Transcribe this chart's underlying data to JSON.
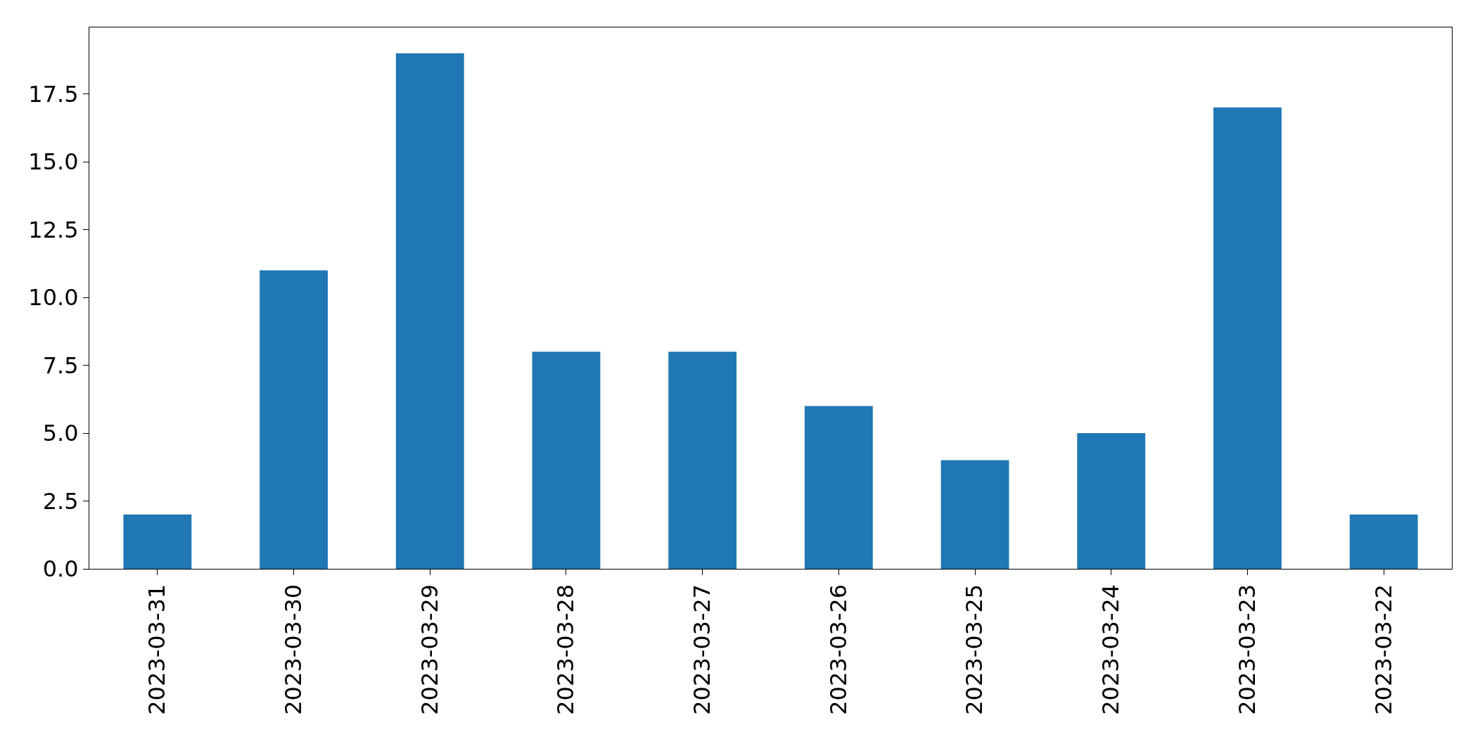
{
  "chart_data": {
    "type": "bar",
    "categories": [
      "2023-03-31",
      "2023-03-30",
      "2023-03-29",
      "2023-03-28",
      "2023-03-27",
      "2023-03-26",
      "2023-03-25",
      "2023-03-24",
      "2023-03-23",
      "2023-03-22"
    ],
    "values": [
      2,
      11,
      19,
      8,
      8,
      6,
      4,
      5,
      17,
      2
    ],
    "color": "#1f77b4",
    "ylim": [
      0,
      19.95
    ],
    "yticks": [
      {
        "value": 0,
        "label": "0.0"
      },
      {
        "value": 2.5,
        "label": "2.5"
      },
      {
        "value": 5,
        "label": "5.0"
      },
      {
        "value": 7.5,
        "label": "7.5"
      },
      {
        "value": 10,
        "label": "10.0"
      },
      {
        "value": 12.5,
        "label": "12.5"
      },
      {
        "value": 15,
        "label": "15.0"
      },
      {
        "value": 17.5,
        "label": "17.5"
      }
    ],
    "legend": false
  }
}
